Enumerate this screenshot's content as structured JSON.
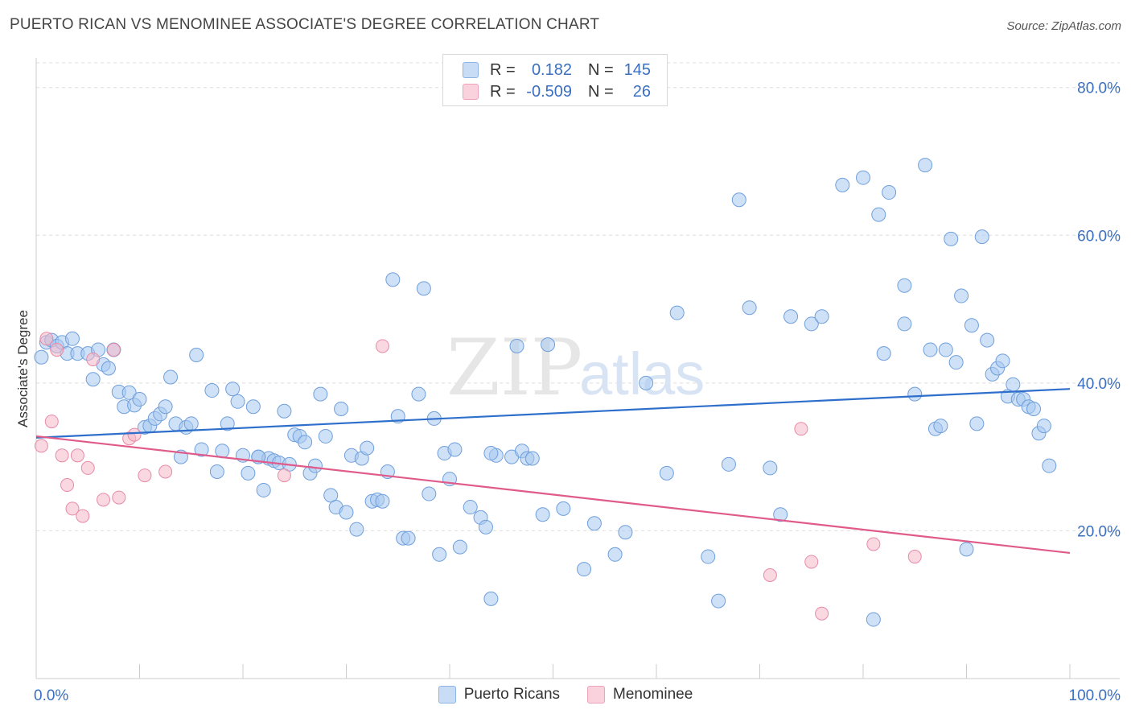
{
  "header": {
    "title": "PUERTO RICAN VS MENOMINEE ASSOCIATE'S DEGREE CORRELATION CHART",
    "source": "Source: ZipAtlas.com"
  },
  "legend": {
    "rows": [
      {
        "r_label": "R =",
        "r_value": "0.182",
        "n_label": "N =",
        "n_value": "145",
        "color": "#a8c8f0"
      },
      {
        "r_label": "R =",
        "r_value": "-0.509",
        "n_label": "N =",
        "n_value": "26",
        "color": "#f5b8c8"
      }
    ]
  },
  "bottom_legend": [
    {
      "label": "Puerto Ricans",
      "color": "#a8c8f0"
    },
    {
      "label": "Menominee",
      "color": "#f5b8c8"
    }
  ],
  "watermark": {
    "part1": "ZIP",
    "part2": "atlas"
  },
  "chart_data": {
    "type": "scatter",
    "title": "PUERTO RICAN VS MENOMINEE ASSOCIATE'S DEGREE CORRELATION CHART",
    "xlabel": "",
    "ylabel": "Associate's Degree",
    "xlim": [
      0,
      100
    ],
    "ylim": [
      0,
      84
    ],
    "x_tick_labels": [
      "0.0%",
      "100.0%"
    ],
    "y_ticks": [
      20,
      40,
      60,
      80
    ],
    "y_tick_labels": [
      "20.0%",
      "40.0%",
      "60.0%",
      "80.0%"
    ],
    "grid": true,
    "series": [
      {
        "name": "Puerto Ricans",
        "color": "#a8c8f0",
        "stroke": "#6f9fdc",
        "trend": {
          "x": [
            0,
            100
          ],
          "y": [
            32.6,
            39.2
          ],
          "color": "#2f6fcc"
        },
        "points": [
          [
            0.5,
            43.5
          ],
          [
            1,
            45.5
          ],
          [
            1.5,
            45.8
          ],
          [
            2,
            45
          ],
          [
            2.5,
            45.5
          ],
          [
            3,
            44
          ],
          [
            3.5,
            46
          ],
          [
            4,
            44
          ],
          [
            5,
            44
          ],
          [
            5.5,
            40.5
          ],
          [
            6,
            44.5
          ],
          [
            6.5,
            42.5
          ],
          [
            7,
            42
          ],
          [
            7.5,
            44.5
          ],
          [
            8,
            38.8
          ],
          [
            8.5,
            36.8
          ],
          [
            9,
            38.7
          ],
          [
            9.5,
            37
          ],
          [
            10,
            37.8
          ],
          [
            10.5,
            34
          ],
          [
            11,
            34.2
          ],
          [
            11.5,
            35.2
          ],
          [
            12,
            35.8
          ],
          [
            12.5,
            36.8
          ],
          [
            13,
            40.8
          ],
          [
            13.5,
            34.5
          ],
          [
            14,
            30
          ],
          [
            14.5,
            34
          ],
          [
            15,
            34.5
          ],
          [
            15.5,
            43.8
          ],
          [
            16,
            31
          ],
          [
            17,
            39
          ],
          [
            17.5,
            28
          ],
          [
            18,
            30.8
          ],
          [
            18.5,
            34.5
          ],
          [
            19,
            39.2
          ],
          [
            19.5,
            37.5
          ],
          [
            20,
            30.2
          ],
          [
            20.5,
            27.8
          ],
          [
            21,
            36.8
          ],
          [
            21.5,
            30
          ],
          [
            22,
            25.5
          ],
          [
            22.5,
            29.8
          ],
          [
            23,
            29.5
          ],
          [
            23.5,
            29.2
          ],
          [
            24,
            36.2
          ],
          [
            24.5,
            29
          ],
          [
            25,
            33
          ],
          [
            25.5,
            32.8
          ],
          [
            26,
            32
          ],
          [
            26.5,
            27.8
          ],
          [
            27,
            28.8
          ],
          [
            27.5,
            38.5
          ],
          [
            28,
            32.8
          ],
          [
            28.5,
            24.8
          ],
          [
            29,
            23.2
          ],
          [
            29.5,
            36.5
          ],
          [
            30,
            22.5
          ],
          [
            30.5,
            30.2
          ],
          [
            31,
            20.2
          ],
          [
            31.5,
            29.8
          ],
          [
            32,
            31.2
          ],
          [
            32.5,
            24
          ],
          [
            33,
            24.2
          ],
          [
            33.5,
            24
          ],
          [
            34,
            28
          ],
          [
            34.5,
            54
          ],
          [
            35,
            35.5
          ],
          [
            35.5,
            19
          ],
          [
            36,
            19
          ],
          [
            37,
            38.5
          ],
          [
            37.5,
            52.8
          ],
          [
            38,
            25
          ],
          [
            38.5,
            35.2
          ],
          [
            39,
            16.8
          ],
          [
            39.5,
            30.5
          ],
          [
            40,
            27
          ],
          [
            40.5,
            31
          ],
          [
            41,
            17.8
          ],
          [
            42,
            23.2
          ],
          [
            43,
            21.8
          ],
          [
            43.5,
            20.5
          ],
          [
            44,
            10.8
          ],
          [
            44.5,
            30.2
          ],
          [
            46,
            30
          ],
          [
            46.5,
            45
          ],
          [
            47,
            30.8
          ],
          [
            47.5,
            29.8
          ],
          [
            48,
            29.8
          ],
          [
            49,
            22.2
          ],
          [
            49.5,
            45.2
          ],
          [
            51,
            23
          ],
          [
            53,
            14.8
          ],
          [
            54,
            21
          ],
          [
            56,
            16.8
          ],
          [
            57,
            19.8
          ],
          [
            59,
            40
          ],
          [
            61,
            27.8
          ],
          [
            62,
            49.5
          ],
          [
            65,
            16.5
          ],
          [
            66,
            10.5
          ],
          [
            67,
            29
          ],
          [
            68,
            64.8
          ],
          [
            69,
            50.2
          ],
          [
            71,
            28.5
          ],
          [
            72,
            22.2
          ],
          [
            73,
            49
          ],
          [
            75,
            48
          ],
          [
            76,
            49
          ],
          [
            78,
            66.8
          ],
          [
            80,
            67.8
          ],
          [
            81,
            8
          ],
          [
            81.5,
            62.8
          ],
          [
            82,
            44
          ],
          [
            82.5,
            65.8
          ],
          [
            84,
            48
          ],
          [
            84,
            53.2
          ],
          [
            85,
            38.5
          ],
          [
            86,
            69.5
          ],
          [
            86.5,
            44.5
          ],
          [
            87,
            33.8
          ],
          [
            87.5,
            34.2
          ],
          [
            88,
            44.5
          ],
          [
            88.5,
            59.5
          ],
          [
            89,
            42.8
          ],
          [
            89.5,
            51.8
          ],
          [
            90,
            17.5
          ],
          [
            90.5,
            47.8
          ],
          [
            91,
            34.5
          ],
          [
            91.5,
            59.8
          ],
          [
            92,
            45.8
          ],
          [
            92.5,
            41.2
          ],
          [
            93,
            42
          ],
          [
            93.5,
            43
          ],
          [
            94,
            38.2
          ],
          [
            94.5,
            39.8
          ],
          [
            95,
            37.8
          ],
          [
            95.5,
            37.8
          ],
          [
            96,
            36.8
          ],
          [
            96.5,
            36.5
          ],
          [
            97,
            33.2
          ],
          [
            97.5,
            34.2
          ],
          [
            98,
            28.8
          ],
          [
            44,
            30.5
          ],
          [
            21.5,
            30
          ]
        ]
      },
      {
        "name": "Menominee",
        "color": "#f5b8c8",
        "stroke": "#e88aa6",
        "trend": {
          "x": [
            0,
            100
          ],
          "y": [
            32.8,
            17
          ],
          "color": "#e05a8a"
        },
        "points": [
          [
            0.5,
            31.5
          ],
          [
            1,
            46
          ],
          [
            1.5,
            34.8
          ],
          [
            2,
            44.5
          ],
          [
            2.5,
            30.2
          ],
          [
            3,
            26.2
          ],
          [
            3.5,
            23
          ],
          [
            4,
            30.2
          ],
          [
            4.5,
            22
          ],
          [
            5,
            28.5
          ],
          [
            5.5,
            43.2
          ],
          [
            6.5,
            24.2
          ],
          [
            7.5,
            44.5
          ],
          [
            8,
            24.5
          ],
          [
            9,
            32.5
          ],
          [
            9.5,
            33
          ],
          [
            10.5,
            27.5
          ],
          [
            12.5,
            28
          ],
          [
            24,
            27.5
          ],
          [
            33.5,
            45
          ],
          [
            71,
            14
          ],
          [
            74,
            33.8
          ],
          [
            75,
            15.8
          ],
          [
            76,
            8.8
          ],
          [
            81,
            18.2
          ],
          [
            85,
            16.5
          ]
        ]
      }
    ]
  }
}
